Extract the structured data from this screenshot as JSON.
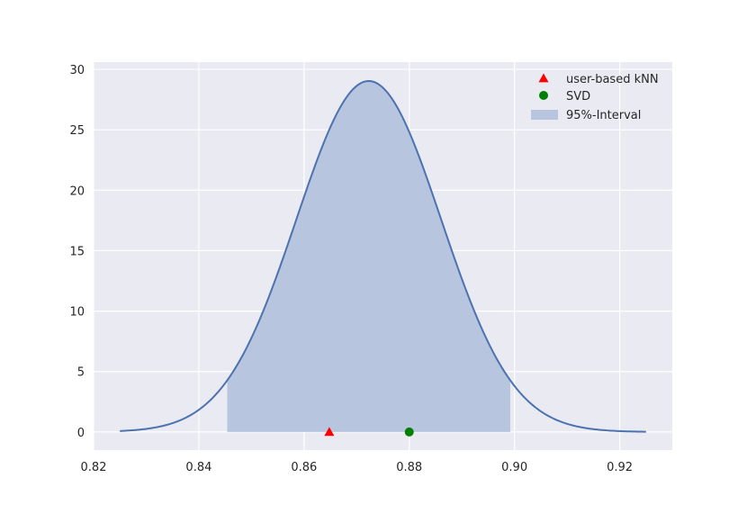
{
  "chart_data": {
    "type": "line",
    "title": "",
    "xlabel": "",
    "ylabel": "",
    "xlim": [
      0.82,
      0.93
    ],
    "ylim": [
      -1.5,
      30.6
    ],
    "xticks": [
      "0.82",
      "0.84",
      "0.86",
      "0.88",
      "0.90",
      "0.92"
    ],
    "yticks": [
      "0",
      "5",
      "10",
      "15",
      "20",
      "25",
      "30"
    ],
    "grid": true,
    "legend_position": "top-right",
    "curve": {
      "distribution": "normal",
      "mean": 0.8723,
      "std": 0.01374,
      "x_range": [
        0.825,
        0.925
      ],
      "color": "#4c72b0"
    },
    "interval": {
      "name": "95%-Interval",
      "low": 0.8454,
      "high": 0.8992,
      "color": "#b8c5de"
    },
    "series": [
      {
        "name": "user-based kNN",
        "marker": "triangle",
        "color": "#ff0000",
        "x": 0.8648,
        "y": 0
      },
      {
        "name": "SVD",
        "marker": "circle",
        "color": "#008000",
        "x": 0.88,
        "y": 0
      }
    ],
    "legend": [
      "user-based kNN",
      "SVD",
      "95%-Interval"
    ]
  }
}
